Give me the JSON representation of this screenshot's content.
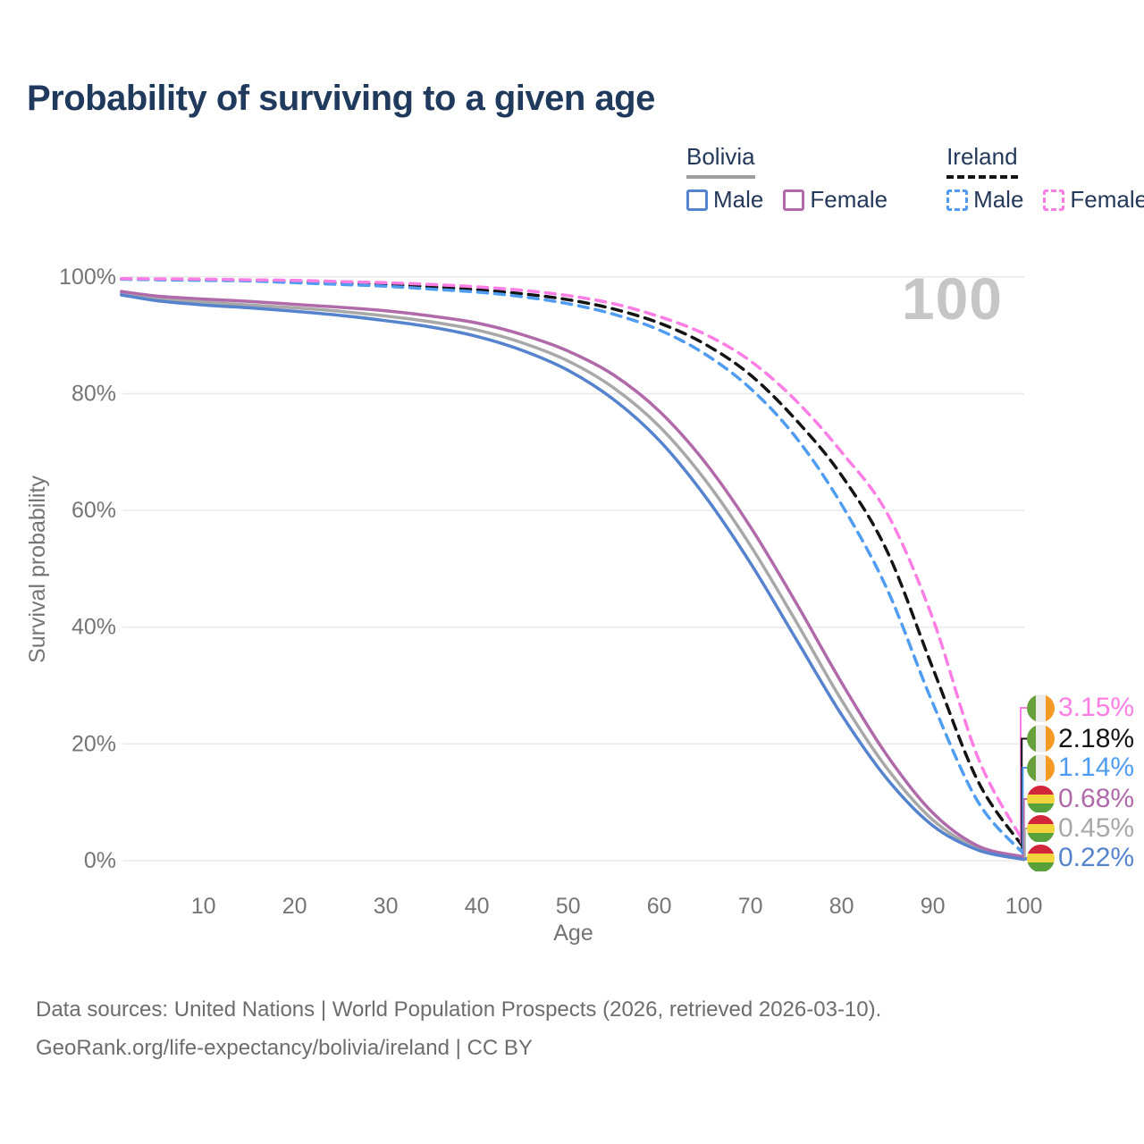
{
  "title": "Probability of surviving to a given age",
  "watermark": "100",
  "legend": {
    "groups": [
      {
        "name": "Bolivia",
        "underline": "solid",
        "underline_color": "#9e9e9e",
        "items": [
          {
            "label": "Male",
            "color": "#5583cd",
            "dashed": false
          },
          {
            "label": "Female",
            "color": "#b06aaa",
            "dashed": false
          }
        ]
      },
      {
        "name": "Ireland",
        "underline": "dashed",
        "underline_color": "#141414",
        "items": [
          {
            "label": "Male",
            "color": "#4f9cf0",
            "dashed": true
          },
          {
            "label": "Female",
            "color": "#fb7ee4",
            "dashed": true
          }
        ]
      }
    ]
  },
  "chart_data": {
    "type": "line",
    "title": "Probability of surviving to a given age",
    "xlabel": "Age",
    "ylabel": "Survival probability",
    "xlim": [
      0,
      100
    ],
    "ylim": [
      0,
      100
    ],
    "grid": "horizontal-only",
    "x_ticks": [
      10,
      20,
      30,
      40,
      50,
      60,
      70,
      80,
      90,
      100
    ],
    "y_ticks": [
      {
        "value": 0,
        "label": "0%"
      },
      {
        "value": 20,
        "label": "20%"
      },
      {
        "value": 40,
        "label": "40%"
      },
      {
        "value": 60,
        "label": "60%"
      },
      {
        "value": 80,
        "label": "80%"
      },
      {
        "value": 100,
        "label": "100%"
      }
    ],
    "x": [
      1,
      5,
      10,
      15,
      20,
      25,
      30,
      35,
      40,
      45,
      50,
      55,
      60,
      65,
      70,
      75,
      80,
      85,
      90,
      95,
      100
    ],
    "series": [
      {
        "name": "Ireland Female",
        "country": "Ireland",
        "group": "Female",
        "color": "#fb7ee4",
        "dashed": true,
        "flag": "ireland",
        "end_label": "3.15%",
        "end_value": 3.15,
        "values": [
          99.7,
          99.65,
          99.6,
          99.5,
          99.4,
          99.2,
          99.0,
          98.7,
          98.3,
          97.7,
          96.8,
          95.4,
          93.2,
          90.2,
          85.6,
          78.8,
          70.0,
          59.5,
          41.5,
          17.5,
          3.15
        ]
      },
      {
        "name": "Ireland",
        "country": "Ireland",
        "group": "Both sexes",
        "color": "#141414",
        "dashed": true,
        "flag": "ireland",
        "end_label": "2.18%",
        "end_value": 2.18,
        "values": [
          99.65,
          99.6,
          99.5,
          99.4,
          99.2,
          99.0,
          98.7,
          98.3,
          97.8,
          97.1,
          96.1,
          94.5,
          92.1,
          88.5,
          83.2,
          75.5,
          66.0,
          53.0,
          33.0,
          13.5,
          2.18
        ]
      },
      {
        "name": "Ireland Male",
        "country": "Ireland",
        "group": "Male",
        "color": "#4f9cf0",
        "dashed": true,
        "flag": "ireland",
        "end_label": "1.14%",
        "end_value": 1.14,
        "values": [
          99.6,
          99.5,
          99.4,
          99.3,
          99.0,
          98.7,
          98.4,
          97.9,
          97.4,
          96.6,
          95.4,
          93.6,
          90.9,
          86.8,
          80.9,
          72.5,
          61.0,
          46.5,
          27.0,
          10.0,
          1.14
        ]
      },
      {
        "name": "Bolivia Female",
        "country": "Bolivia",
        "group": "Female",
        "color": "#b06aaa",
        "dashed": false,
        "flag": "bolivia",
        "end_label": "0.68%",
        "end_value": 0.68,
        "values": [
          97.5,
          96.7,
          96.2,
          95.8,
          95.3,
          94.8,
          94.2,
          93.3,
          92.1,
          90.1,
          87.3,
          83.2,
          77.0,
          68.3,
          57.2,
          44.2,
          30.5,
          18.0,
          8.2,
          2.5,
          0.68
        ]
      },
      {
        "name": "Bolivia",
        "country": "Bolivia",
        "group": "Both sexes",
        "color": "#a8a8a8",
        "dashed": false,
        "flag": "bolivia",
        "end_label": "0.45%",
        "end_value": 0.45,
        "values": [
          97.2,
          96.3,
          95.7,
          95.2,
          94.7,
          94.1,
          93.3,
          92.3,
          90.9,
          88.7,
          85.6,
          81.0,
          74.4,
          65.3,
          54.0,
          41.0,
          27.5,
          15.8,
          7.0,
          2.1,
          0.45
        ]
      },
      {
        "name": "Bolivia Male",
        "country": "Bolivia",
        "group": "Male",
        "color": "#5583cd",
        "dashed": false,
        "flag": "bolivia",
        "end_label": "0.22%",
        "end_value": 0.22,
        "values": [
          96.9,
          95.9,
          95.2,
          94.7,
          94.1,
          93.4,
          92.5,
          91.4,
          89.8,
          87.4,
          84.0,
          79.0,
          72.0,
          62.5,
          51.0,
          38.0,
          25.0,
          14.0,
          6.0,
          1.8,
          0.22
        ]
      }
    ]
  },
  "flags": {
    "ireland": {
      "orientation": "vertical",
      "colors": [
        "#68a03c",
        "#ececec",
        "#f59a23"
      ]
    },
    "bolivia": {
      "orientation": "horizontal",
      "colors": [
        "#d2263a",
        "#f2d43c",
        "#57a03c"
      ]
    }
  },
  "footer": {
    "line1": "Data sources: United Nations | World Population Prospects (2026, retrieved 2026-03-10).",
    "line2": "GeoRank.org/life-expectancy/bolivia/ireland | CC BY"
  }
}
